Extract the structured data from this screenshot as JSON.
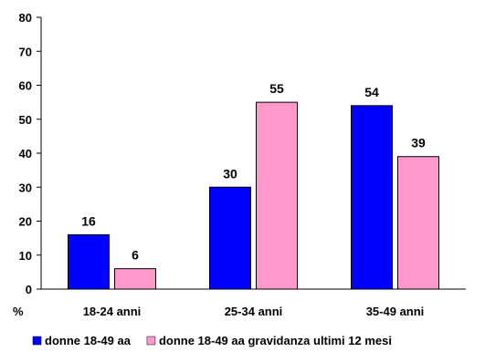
{
  "chart_data": {
    "type": "bar",
    "ylabel": "%",
    "ylim": [
      0,
      80
    ],
    "yticks": [
      0,
      10,
      20,
      30,
      40,
      50,
      60,
      70,
      80
    ],
    "grid": false,
    "legend": "bottom",
    "categories": [
      "18-24 anni",
      "25-34 anni",
      "35-49 anni"
    ],
    "series": [
      {
        "name": "donne 18-49 aa",
        "values": [
          16,
          30,
          54
        ],
        "color": "#0000ff"
      },
      {
        "name": "donne 18-49 aa gravidanza ultimi 12 mesi",
        "values": [
          6,
          55,
          39
        ],
        "color": "#ff99cc"
      }
    ]
  }
}
